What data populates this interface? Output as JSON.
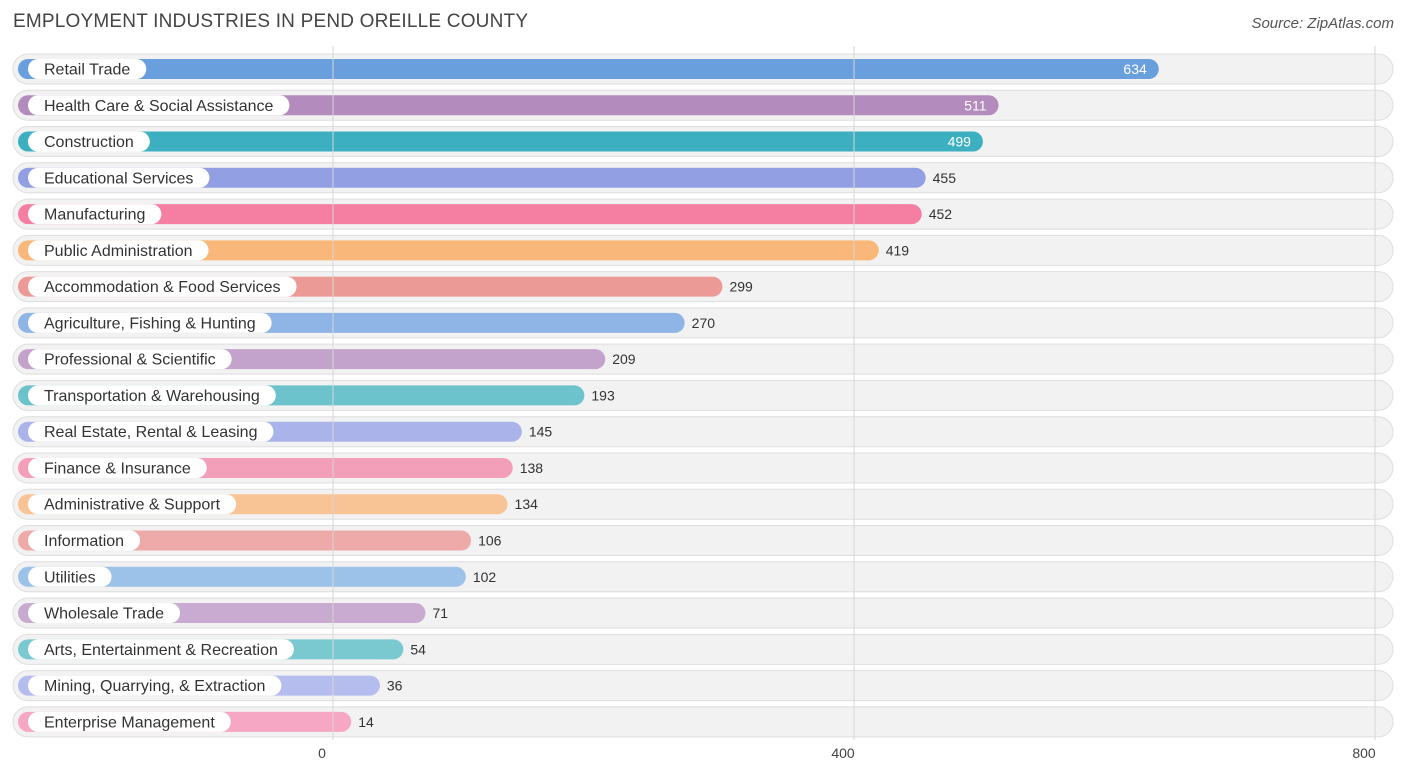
{
  "header": {
    "title": "EMPLOYMENT INDUSTRIES IN PEND OREILLE COUNTY",
    "source": "Source: ZipAtlas.com"
  },
  "chart_data": {
    "type": "bar",
    "orientation": "horizontal",
    "categories": [
      "Retail Trade",
      "Health Care & Social Assistance",
      "Construction",
      "Educational Services",
      "Manufacturing",
      "Public Administration",
      "Accommodation & Food Services",
      "Agriculture, Fishing & Hunting",
      "Professional & Scientific",
      "Transportation & Warehousing",
      "Real Estate, Rental & Leasing",
      "Finance & Insurance",
      "Administrative & Support",
      "Information",
      "Utilities",
      "Wholesale Trade",
      "Arts, Entertainment & Recreation",
      "Mining, Quarrying, & Extraction",
      "Enterprise Management"
    ],
    "values": [
      634,
      511,
      499,
      455,
      452,
      419,
      299,
      270,
      209,
      193,
      145,
      138,
      134,
      106,
      102,
      71,
      54,
      36,
      14
    ],
    "colors": [
      "#6a9fde",
      "#b48bbd",
      "#3cb0c0",
      "#929fe3",
      "#f57fa3",
      "#f9b87a",
      "#eb9a96",
      "#8fb5e6",
      "#c3a3cc",
      "#6cc3cc",
      "#aab4ea",
      "#f49fba",
      "#f8c395",
      "#eeaaa8",
      "#9dc2ea",
      "#c9abd1",
      "#7ac8d0",
      "#b5bcee",
      "#f5a7c3"
    ],
    "xticks": [
      0,
      400,
      800
    ],
    "xlim": [
      0,
      800
    ],
    "grid": true,
    "title": "EMPLOYMENT INDUSTRIES IN PEND OREILLE COUNTY"
  }
}
